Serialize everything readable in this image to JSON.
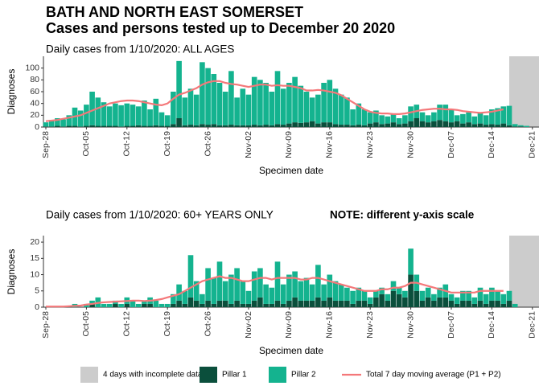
{
  "title": "BATH AND NORTH EAST SOMERSET",
  "subtitle": "Cases and persons tested up to December 20 2020",
  "shade_label": "4 days with incomplete data",
  "chart_data": [
    {
      "type": "bar",
      "stacked": true,
      "title": "Daily cases from 1/10/2020: ALL AGES",
      "x_label": "Specimen date",
      "y_label": "Diagnoses",
      "categories": [
        "Sep-28",
        null,
        null,
        null,
        null,
        null,
        null,
        "Oct-05",
        null,
        null,
        null,
        null,
        null,
        null,
        "Oct-12",
        null,
        null,
        null,
        null,
        null,
        null,
        "Oct-19",
        null,
        null,
        null,
        null,
        null,
        null,
        "Oct-26",
        null,
        null,
        null,
        null,
        null,
        null,
        "Nov-02",
        null,
        null,
        null,
        null,
        null,
        null,
        "Nov-09",
        null,
        null,
        null,
        null,
        null,
        null,
        "Nov-16",
        null,
        null,
        null,
        null,
        null,
        null,
        "Nov-23",
        null,
        null,
        null,
        null,
        null,
        null,
        "Nov-30",
        null,
        null,
        null,
        null,
        null,
        null,
        "Dec-07",
        null,
        null,
        null,
        null,
        null,
        null,
        "Dec-14",
        null,
        null,
        null,
        null,
        null,
        null,
        "Dec-21"
      ],
      "ylim": [
        0,
        120
      ],
      "yticks": [
        0,
        20,
        40,
        60,
        80,
        100
      ],
      "grid": false,
      "series": [
        {
          "name": "Pillar 1",
          "color": "#0b4f3c",
          "values": [
            1,
            1,
            2,
            1,
            2,
            2,
            1,
            2,
            3,
            2,
            2,
            2,
            2,
            1,
            2,
            2,
            3,
            2,
            2,
            3,
            2,
            2,
            5,
            15,
            3,
            4,
            3,
            5,
            4,
            5,
            3,
            3,
            4,
            3,
            3,
            3,
            4,
            3,
            4,
            3,
            5,
            4,
            6,
            8,
            7,
            8,
            10,
            6,
            8,
            8,
            5,
            4,
            4,
            3,
            4,
            3,
            6,
            8,
            5,
            6,
            8,
            5,
            6,
            10,
            15,
            10,
            8,
            10,
            12,
            10,
            8,
            10,
            6,
            8,
            5,
            6,
            4,
            5,
            4,
            6,
            3,
            1,
            1,
            0,
            null
          ]
        },
        {
          "name": "Pillar 2",
          "color": "#14b38f",
          "values": [
            7,
            11,
            13,
            12,
            18,
            31,
            27,
            36,
            57,
            48,
            40,
            33,
            38,
            36,
            38,
            36,
            32,
            43,
            28,
            45,
            23,
            18,
            55,
            97,
            47,
            61,
            52,
            105,
            96,
            85,
            72,
            57,
            91,
            47,
            62,
            52,
            81,
            77,
            71,
            57,
            90,
            61,
            69,
            77,
            63,
            52,
            40,
            49,
            67,
            72,
            60,
            51,
            46,
            27,
            36,
            27,
            19,
            20,
            15,
            12,
            14,
            10,
            14,
            25,
            23,
            15,
            12,
            15,
            26,
            28,
            22,
            10,
            16,
            17,
            13,
            19,
            16,
            25,
            28,
            29,
            33,
            4,
            2,
            2,
            null
          ]
        },
        {
          "name": "Total 7 day moving average (P1 + P2)",
          "kind": "line",
          "color": "#f4787a",
          "values": [
            10,
            11,
            12,
            14,
            16,
            18,
            20,
            24,
            28,
            32,
            36,
            40,
            42,
            44,
            45,
            45,
            44,
            42,
            40,
            38,
            37,
            40,
            48,
            55,
            58,
            62,
            66,
            72,
            76,
            78,
            78,
            75,
            73,
            72,
            70,
            68,
            70,
            72,
            72,
            70,
            71,
            70,
            70,
            68,
            66,
            62,
            62,
            63,
            62,
            60,
            58,
            54,
            48,
            42,
            36,
            30,
            26,
            24,
            23,
            23,
            22,
            22,
            23,
            25,
            27,
            29,
            30,
            31,
            31,
            30,
            30,
            29,
            27,
            26,
            25,
            24,
            25,
            26,
            28,
            30,
            null,
            null,
            null,
            null,
            null
          ]
        }
      ]
    },
    {
      "type": "bar",
      "stacked": true,
      "title": "Daily cases from 1/10/2020: 60+ YEARS ONLY",
      "annotation": "NOTE: different y-axis scale",
      "x_label": "Specimen date",
      "y_label": "Diagnoses",
      "categories": [
        "Sep-28",
        null,
        null,
        null,
        null,
        null,
        null,
        "Oct-05",
        null,
        null,
        null,
        null,
        null,
        null,
        "Oct-12",
        null,
        null,
        null,
        null,
        null,
        null,
        "Oct-19",
        null,
        null,
        null,
        null,
        null,
        null,
        "Oct-26",
        null,
        null,
        null,
        null,
        null,
        null,
        "Nov-02",
        null,
        null,
        null,
        null,
        null,
        null,
        "Nov-09",
        null,
        null,
        null,
        null,
        null,
        null,
        "Nov-16",
        null,
        null,
        null,
        null,
        null,
        null,
        "Nov-23",
        null,
        null,
        null,
        null,
        null,
        null,
        "Nov-30",
        null,
        null,
        null,
        null,
        null,
        null,
        "Dec-07",
        null,
        null,
        null,
        null,
        null,
        null,
        "Dec-14",
        null,
        null,
        null,
        null,
        null,
        null,
        "Dec-21"
      ],
      "ylim": [
        0,
        22
      ],
      "yticks": [
        0,
        5,
        10,
        15,
        20
      ],
      "grid": false,
      "series": [
        {
          "name": "Pillar 1",
          "color": "#0b4f3c",
          "values": [
            0,
            0,
            0,
            0,
            0,
            0,
            0,
            0,
            1,
            0,
            0,
            0,
            1,
            0,
            1,
            0,
            0,
            1,
            1,
            0,
            0,
            0,
            1,
            2,
            1,
            3,
            2,
            1,
            2,
            1,
            2,
            2,
            1,
            2,
            1,
            1,
            2,
            3,
            1,
            1,
            2,
            1,
            2,
            3,
            2,
            2,
            2,
            3,
            2,
            3,
            2,
            2,
            2,
            1,
            2,
            2,
            1,
            3,
            4,
            2,
            5,
            4,
            3,
            10,
            5,
            2,
            3,
            2,
            3,
            3,
            2,
            1,
            2,
            2,
            1,
            2,
            1,
            2,
            2,
            1,
            2,
            0,
            0,
            0,
            null
          ]
        },
        {
          "name": "Pillar 2",
          "color": "#14b38f",
          "values": [
            0,
            0,
            0,
            0,
            0,
            1,
            0,
            1,
            1,
            3,
            1,
            1,
            1,
            1,
            2,
            2,
            1,
            1,
            2,
            2,
            1,
            1,
            3,
            5,
            4,
            13,
            6,
            3,
            10,
            8,
            12,
            6,
            9,
            10,
            7,
            4,
            9,
            9,
            6,
            5,
            12,
            6,
            8,
            8,
            6,
            7,
            5,
            10,
            5,
            7,
            6,
            5,
            4,
            4,
            4,
            3,
            2,
            2,
            2,
            2,
            3,
            2,
            2,
            8,
            5,
            3,
            3,
            2,
            3,
            4,
            2,
            2,
            3,
            3,
            2,
            4,
            3,
            4,
            3,
            3,
            3,
            1,
            0,
            0,
            null
          ]
        },
        {
          "name": "Total 7 day moving average (P1 + P2)",
          "kind": "line",
          "color": "#f4787a",
          "values": [
            0.2,
            0.2,
            0.2,
            0.2,
            0.3,
            0.4,
            0.5,
            0.8,
            1,
            1.3,
            1.5,
            1.6,
            1.7,
            1.8,
            1.9,
            2,
            2,
            1.9,
            2,
            2.2,
            2.5,
            3,
            3.5,
            4,
            5,
            6,
            7,
            8,
            8.5,
            9,
            9.5,
            9,
            9,
            8.5,
            8,
            8,
            8.5,
            9,
            9,
            8.5,
            9,
            9,
            9,
            9,
            8.5,
            8.5,
            9,
            9,
            8.5,
            8,
            7.5,
            7,
            6.5,
            6,
            5.5,
            5,
            5,
            5,
            5.5,
            5.5,
            6,
            6,
            6.5,
            7.5,
            7.5,
            7,
            6.5,
            6,
            5.5,
            5,
            4.5,
            4.5,
            4.5,
            4.5,
            4.5,
            5,
            5,
            5,
            5,
            5,
            null,
            null,
            null,
            null,
            null
          ]
        }
      ]
    }
  ]
}
